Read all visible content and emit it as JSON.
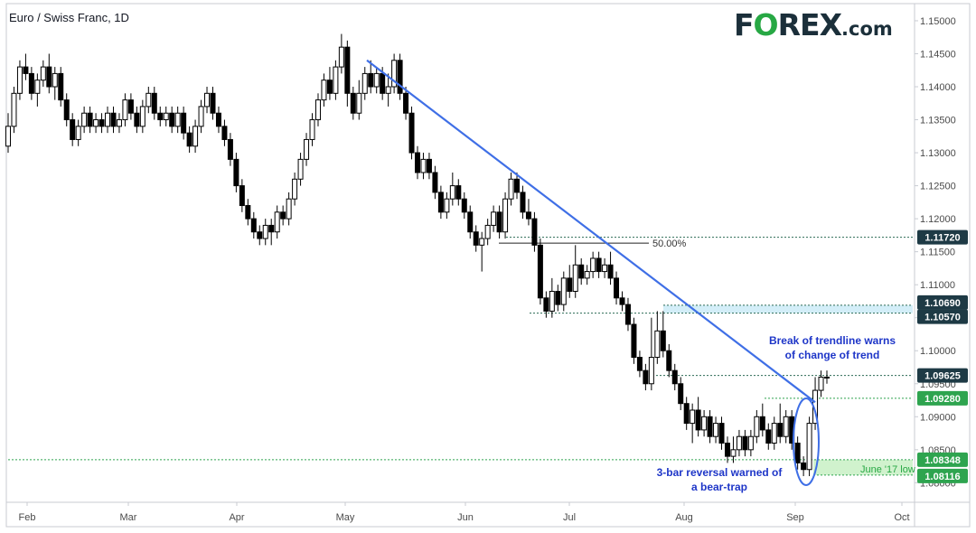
{
  "title": "Euro / Swiss Franc, 1D",
  "logo": {
    "f": "F",
    "o": "O",
    "rest": "REX",
    "dom": ".com"
  },
  "colors": {
    "up": "#ffffff",
    "down": "#000000",
    "trend": "#3f6fe6",
    "accent_green": "#2ea44f",
    "label_dark": "#1e3a45",
    "zone": "#b6e3f4",
    "june_zone": "#c4efc0"
  },
  "chart_data": {
    "type": "candlestick",
    "title": "Euro / Swiss Franc, 1D",
    "x_axis": {
      "labels": [
        "Feb",
        "Mar",
        "Apr",
        "May",
        "Jun",
        "Jul",
        "Aug",
        "Sep",
        "Oct"
      ]
    },
    "y_axis": {
      "range": [
        1.0795,
        1.1515
      ],
      "ticks": [
        "1.15000",
        "1.14500",
        "1.14000",
        "1.13500",
        "1.13000",
        "1.12500",
        "1.12000",
        "1.11500",
        "1.11000",
        "1.10500",
        "1.10000",
        "1.09500",
        "1.09000",
        "1.08500",
        "1.08000"
      ]
    },
    "grid": false,
    "candles": [
      [
        1.131,
        1.134,
        1.13,
        1.136
      ],
      [
        1.134,
        1.139,
        1.133,
        1.14
      ],
      [
        1.139,
        1.143,
        1.138,
        1.144
      ],
      [
        1.143,
        1.142,
        1.141,
        1.145
      ],
      [
        1.142,
        1.139,
        1.138,
        1.143
      ],
      [
        1.139,
        1.141,
        1.137,
        1.142
      ],
      [
        1.141,
        1.143,
        1.14,
        1.144
      ],
      [
        1.143,
        1.14,
        1.139,
        1.145
      ],
      [
        1.14,
        1.142,
        1.138,
        1.143
      ],
      [
        1.142,
        1.138,
        1.137,
        1.143
      ],
      [
        1.138,
        1.135,
        1.134,
        1.139
      ],
      [
        1.135,
        1.132,
        1.131,
        1.136
      ],
      [
        1.132,
        1.134,
        1.131,
        1.135
      ],
      [
        1.134,
        1.136,
        1.133,
        1.137
      ],
      [
        1.136,
        1.134,
        1.133,
        1.137
      ],
      [
        1.134,
        1.135,
        1.133,
        1.136
      ],
      [
        1.135,
        1.134,
        1.133,
        1.136
      ],
      [
        1.134,
        1.136,
        1.133,
        1.137
      ],
      [
        1.136,
        1.134,
        1.133,
        1.137
      ],
      [
        1.134,
        1.135,
        1.133,
        1.136
      ],
      [
        1.135,
        1.138,
        1.134,
        1.139
      ],
      [
        1.138,
        1.136,
        1.135,
        1.139
      ],
      [
        1.136,
        1.134,
        1.133,
        1.137
      ],
      [
        1.134,
        1.137,
        1.133,
        1.138
      ],
      [
        1.137,
        1.139,
        1.136,
        1.14
      ],
      [
        1.139,
        1.136,
        1.135,
        1.14
      ],
      [
        1.136,
        1.135,
        1.134,
        1.137
      ],
      [
        1.135,
        1.136,
        1.134,
        1.137
      ],
      [
        1.136,
        1.134,
        1.133,
        1.137
      ],
      [
        1.134,
        1.136,
        1.133,
        1.137
      ],
      [
        1.136,
        1.133,
        1.132,
        1.137
      ],
      [
        1.133,
        1.131,
        1.13,
        1.134
      ],
      [
        1.131,
        1.134,
        1.13,
        1.135
      ],
      [
        1.134,
        1.137,
        1.133,
        1.138
      ],
      [
        1.137,
        1.139,
        1.136,
        1.14
      ],
      [
        1.139,
        1.136,
        1.135,
        1.14
      ],
      [
        1.136,
        1.134,
        1.133,
        1.137
      ],
      [
        1.134,
        1.132,
        1.131,
        1.135
      ],
      [
        1.132,
        1.129,
        1.128,
        1.133
      ],
      [
        1.129,
        1.125,
        1.124,
        1.13
      ],
      [
        1.125,
        1.122,
        1.121,
        1.126
      ],
      [
        1.122,
        1.12,
        1.119,
        1.123
      ],
      [
        1.12,
        1.118,
        1.117,
        1.121
      ],
      [
        1.118,
        1.117,
        1.116,
        1.119
      ],
      [
        1.117,
        1.119,
        1.116,
        1.12
      ],
      [
        1.119,
        1.118,
        1.116,
        1.12
      ],
      [
        1.118,
        1.121,
        1.117,
        1.122
      ],
      [
        1.121,
        1.12,
        1.119,
        1.122
      ],
      [
        1.12,
        1.123,
        1.119,
        1.124
      ],
      [
        1.123,
        1.126,
        1.122,
        1.127
      ],
      [
        1.126,
        1.129,
        1.125,
        1.13
      ],
      [
        1.129,
        1.132,
        1.128,
        1.133
      ],
      [
        1.132,
        1.135,
        1.131,
        1.136
      ],
      [
        1.135,
        1.138,
        1.134,
        1.139
      ],
      [
        1.138,
        1.141,
        1.137,
        1.142
      ],
      [
        1.141,
        1.139,
        1.138,
        1.143
      ],
      [
        1.139,
        1.143,
        1.138,
        1.144
      ],
      [
        1.143,
        1.146,
        1.142,
        1.148
      ],
      [
        1.146,
        1.139,
        1.137,
        1.147
      ],
      [
        1.139,
        1.136,
        1.135,
        1.14
      ],
      [
        1.136,
        1.139,
        1.135,
        1.141
      ],
      [
        1.139,
        1.142,
        1.138,
        1.143
      ],
      [
        1.142,
        1.14,
        1.139,
        1.144
      ],
      [
        1.14,
        1.142,
        1.139,
        1.143
      ],
      [
        1.142,
        1.139,
        1.138,
        1.143
      ],
      [
        1.139,
        1.14,
        1.137,
        1.142
      ],
      [
        1.14,
        1.144,
        1.139,
        1.145
      ],
      [
        1.144,
        1.139,
        1.138,
        1.145
      ],
      [
        1.139,
        1.136,
        1.135,
        1.14
      ],
      [
        1.136,
        1.13,
        1.129,
        1.137
      ],
      [
        1.13,
        1.127,
        1.126,
        1.131
      ],
      [
        1.127,
        1.129,
        1.126,
        1.13
      ],
      [
        1.129,
        1.127,
        1.126,
        1.13
      ],
      [
        1.127,
        1.124,
        1.123,
        1.128
      ],
      [
        1.124,
        1.121,
        1.12,
        1.125
      ],
      [
        1.121,
        1.123,
        1.12,
        1.124
      ],
      [
        1.123,
        1.125,
        1.122,
        1.127
      ],
      [
        1.125,
        1.123,
        1.122,
        1.126
      ],
      [
        1.123,
        1.121,
        1.12,
        1.124
      ],
      [
        1.121,
        1.118,
        1.117,
        1.122
      ],
      [
        1.118,
        1.116,
        1.115,
        1.119
      ],
      [
        1.116,
        1.117,
        1.112,
        1.118
      ],
      [
        1.117,
        1.119,
        1.116,
        1.12
      ],
      [
        1.119,
        1.121,
        1.118,
        1.122
      ],
      [
        1.121,
        1.118,
        1.117,
        1.122
      ],
      [
        1.118,
        1.123,
        1.117,
        1.124
      ],
      [
        1.123,
        1.126,
        1.122,
        1.127
      ],
      [
        1.126,
        1.124,
        1.123,
        1.127
      ],
      [
        1.124,
        1.121,
        1.12,
        1.125
      ],
      [
        1.121,
        1.12,
        1.119,
        1.123
      ],
      [
        1.12,
        1.116,
        1.115,
        1.121
      ],
      [
        1.116,
        1.108,
        1.107,
        1.117
      ],
      [
        1.108,
        1.106,
        1.105,
        1.109
      ],
      [
        1.106,
        1.109,
        1.105,
        1.111
      ],
      [
        1.109,
        1.107,
        1.106,
        1.11
      ],
      [
        1.107,
        1.111,
        1.106,
        1.112
      ],
      [
        1.111,
        1.109,
        1.108,
        1.113
      ],
      [
        1.109,
        1.113,
        1.108,
        1.116
      ],
      [
        1.113,
        1.111,
        1.11,
        1.114
      ],
      [
        1.111,
        1.112,
        1.11,
        1.113
      ],
      [
        1.112,
        1.114,
        1.111,
        1.115
      ],
      [
        1.114,
        1.112,
        1.111,
        1.115
      ],
      [
        1.112,
        1.113,
        1.111,
        1.114
      ],
      [
        1.113,
        1.111,
        1.11,
        1.115
      ],
      [
        1.111,
        1.108,
        1.107,
        1.112
      ],
      [
        1.108,
        1.107,
        1.106,
        1.109
      ],
      [
        1.107,
        1.104,
        1.103,
        1.108
      ],
      [
        1.104,
        1.099,
        1.098,
        1.105
      ],
      [
        1.099,
        1.097,
        1.096,
        1.1
      ],
      [
        1.097,
        1.095,
        1.094,
        1.098
      ],
      [
        1.095,
        1.099,
        1.094,
        1.105
      ],
      [
        1.099,
        1.103,
        1.098,
        1.106
      ],
      [
        1.103,
        1.1,
        1.099,
        1.106
      ],
      [
        1.1,
        1.097,
        1.096,
        1.101
      ],
      [
        1.097,
        1.095,
        1.094,
        1.098
      ],
      [
        1.095,
        1.092,
        1.091,
        1.096
      ],
      [
        1.092,
        1.089,
        1.088,
        1.093
      ],
      [
        1.089,
        1.091,
        1.086,
        1.092
      ],
      [
        1.091,
        1.088,
        1.087,
        1.093
      ],
      [
        1.088,
        1.09,
        1.087,
        1.091
      ],
      [
        1.09,
        1.087,
        1.086,
        1.091
      ],
      [
        1.087,
        1.089,
        1.086,
        1.09
      ],
      [
        1.089,
        1.086,
        1.085,
        1.09
      ],
      [
        1.086,
        1.084,
        1.083,
        1.087
      ],
      [
        1.084,
        1.085,
        1.083,
        1.087
      ],
      [
        1.085,
        1.087,
        1.084,
        1.088
      ],
      [
        1.087,
        1.085,
        1.084,
        1.088
      ],
      [
        1.085,
        1.087,
        1.084,
        1.088
      ],
      [
        1.087,
        1.09,
        1.086,
        1.091
      ],
      [
        1.09,
        1.088,
        1.087,
        1.092
      ],
      [
        1.088,
        1.086,
        1.085,
        1.089
      ],
      [
        1.086,
        1.089,
        1.085,
        1.09
      ],
      [
        1.089,
        1.087,
        1.086,
        1.092
      ],
      [
        1.087,
        1.09,
        1.086,
        1.091
      ],
      [
        1.09,
        1.086,
        1.085,
        1.091
      ],
      [
        1.086,
        1.083,
        1.082,
        1.087
      ],
      [
        1.083,
        1.082,
        1.081,
        1.084
      ],
      [
        1.082,
        1.089,
        1.081,
        1.09
      ],
      [
        1.089,
        1.094,
        1.088,
        1.096
      ],
      [
        1.094,
        1.096,
        1.093,
        1.097
      ],
      [
        1.096,
        1.096,
        1.095,
        1.097
      ]
    ],
    "trendline": {
      "from": {
        "x": "May",
        "y": 1.144
      },
      "to": {
        "x": "Sep",
        "y": 1.0922
      }
    },
    "fibonacci": {
      "label": "50.00%",
      "y": 1.1163
    },
    "price_levels": [
      {
        "value": 1.1172,
        "label": "1.11720",
        "style": "dark"
      },
      {
        "value": 1.1069,
        "label": "1.10690",
        "style": "dark"
      },
      {
        "value": 1.1057,
        "label": "1.10570",
        "style": "dark"
      },
      {
        "value": 1.09625,
        "label": "1.09625",
        "style": "dark"
      },
      {
        "value": 1.0928,
        "label": "1.09280",
        "style": "green"
      },
      {
        "value": 1.08348,
        "label": "1.08348",
        "style": "green"
      },
      {
        "value": 1.08116,
        "label": "1.08116",
        "style": "green"
      }
    ],
    "annotations": [
      {
        "id": "trendline-break",
        "text": [
          "Break of trendline warns",
          "of change of trend"
        ],
        "color": "#1e36c8"
      },
      {
        "id": "bear-trap",
        "text": [
          "3-bar reversal warned of",
          "a bear-trap"
        ],
        "color": "#1e36c8"
      },
      {
        "id": "june-low",
        "text": [
          "June '17 low"
        ],
        "color": "#27a844"
      }
    ]
  }
}
